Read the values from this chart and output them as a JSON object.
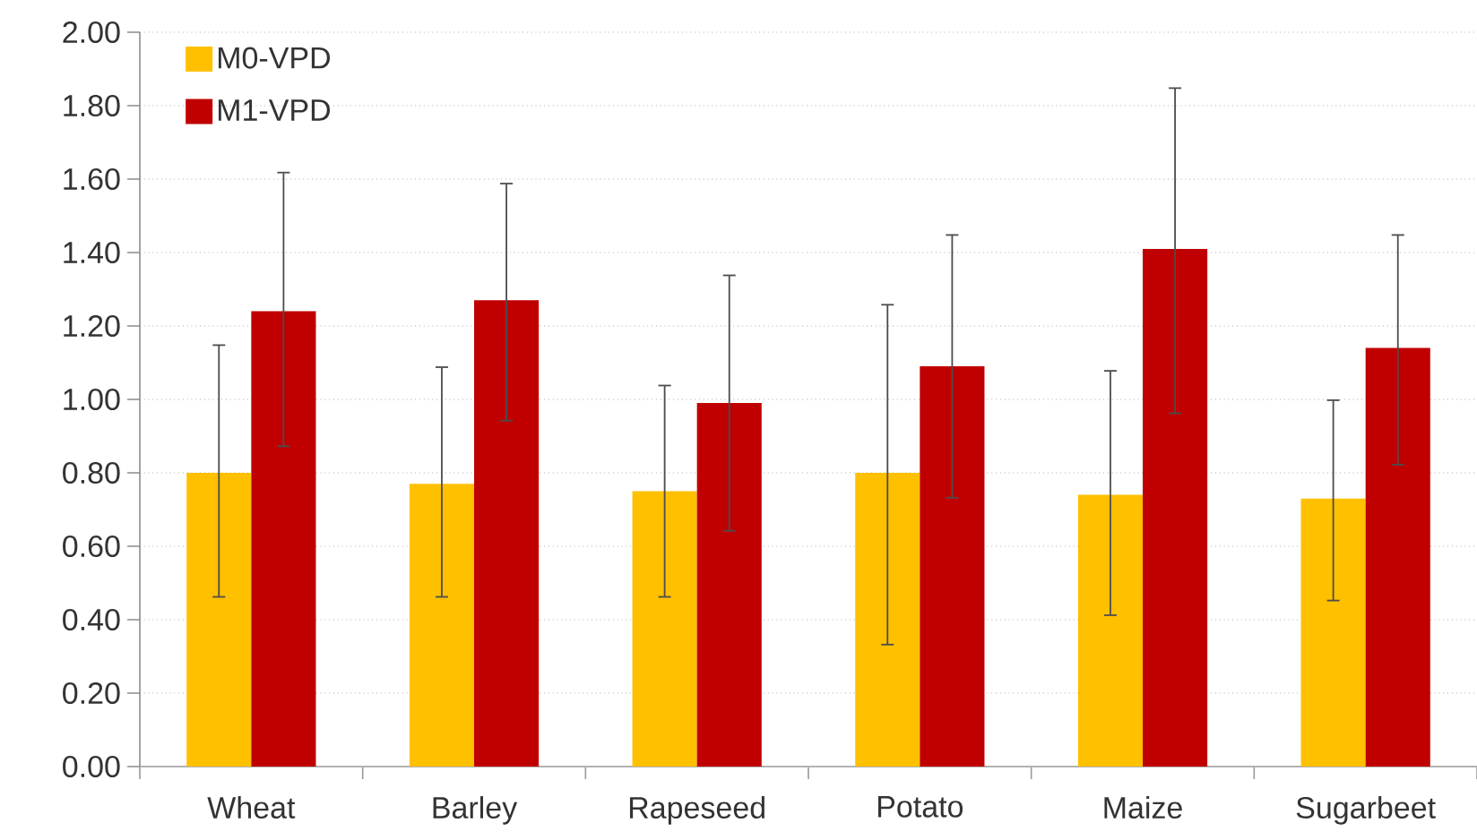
{
  "chart_data": {
    "type": "bar",
    "categories": [
      "Wheat",
      "Barley",
      "Rapeseed",
      "Potato",
      "Maize",
      "Sugarbeet"
    ],
    "series": [
      {
        "name": "M0-VPD",
        "color": "#ffc000",
        "values": [
          0.8,
          0.77,
          0.75,
          0.8,
          0.74,
          0.73
        ],
        "errors": [
          [
            0.46,
            1.15
          ],
          [
            0.46,
            1.09
          ],
          [
            0.46,
            1.04
          ],
          [
            0.33,
            1.26
          ],
          [
            0.41,
            1.08
          ],
          [
            0.45,
            1.0
          ]
        ]
      },
      {
        "name": "M1-VPD",
        "color": "#c00000",
        "values": [
          1.24,
          1.27,
          0.99,
          1.09,
          1.41,
          1.14
        ],
        "errors": [
          [
            0.87,
            1.62
          ],
          [
            0.94,
            1.59
          ],
          [
            0.64,
            1.34
          ],
          [
            0.73,
            1.45
          ],
          [
            0.96,
            1.85
          ],
          [
            0.82,
            1.45
          ]
        ]
      }
    ],
    "ylim": [
      0,
      2.0
    ],
    "yticks": [
      {
        "value": 0,
        "label": "0.00"
      },
      {
        "value": 0.2,
        "label": "0.20"
      },
      {
        "value": 0.4,
        "label": "0.40"
      },
      {
        "value": 0.6,
        "label": "0.60"
      },
      {
        "value": 0.8,
        "label": "0.80"
      },
      {
        "value": 1.0,
        "label": "1.00"
      },
      {
        "value": 1.2,
        "label": "1.20"
      },
      {
        "value": 1.4,
        "label": "1.40"
      },
      {
        "value": 1.6,
        "label": "1.60"
      },
      {
        "value": 1.8,
        "label": "1.80"
      },
      {
        "value": 2.0,
        "label": "2.00"
      }
    ],
    "grid": "y",
    "legend": "top left"
  }
}
